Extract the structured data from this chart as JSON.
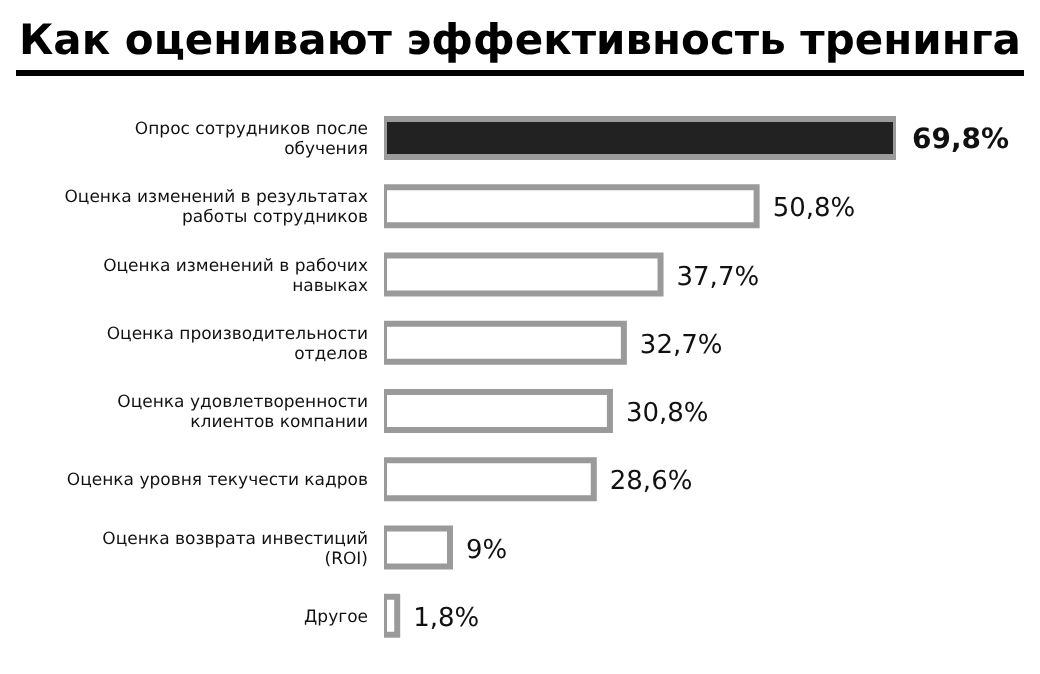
{
  "chart_data": {
    "type": "bar",
    "orientation": "horizontal",
    "title": "Как оценивают эффективность тренинга",
    "categories": [
      "Опрос сотрудников после обучения",
      "Оценка изменений в результатах работы сотрудников",
      "Оценка изменений в рабочих навыках",
      "Оценка производительности отделов",
      "Оценка удовлетворенности клиентов компании",
      "Оценка уровня текучести кадров",
      "Оценка возврата инвестиций (ROI)",
      "Другое"
    ],
    "values": [
      69.8,
      50.8,
      37.7,
      32.7,
      30.8,
      28.6,
      9,
      1.8
    ],
    "value_labels": [
      "69,8%",
      "50,8%",
      "37,7%",
      "32,7%",
      "30,8%",
      "28,6%",
      "9%",
      "1,8%"
    ],
    "colors": [
      "#222222",
      "#ffffff",
      "#ffffff",
      "#ffffff",
      "#ffffff",
      "#ffffff",
      "#ffffff",
      "#ffffff"
    ]
  }
}
